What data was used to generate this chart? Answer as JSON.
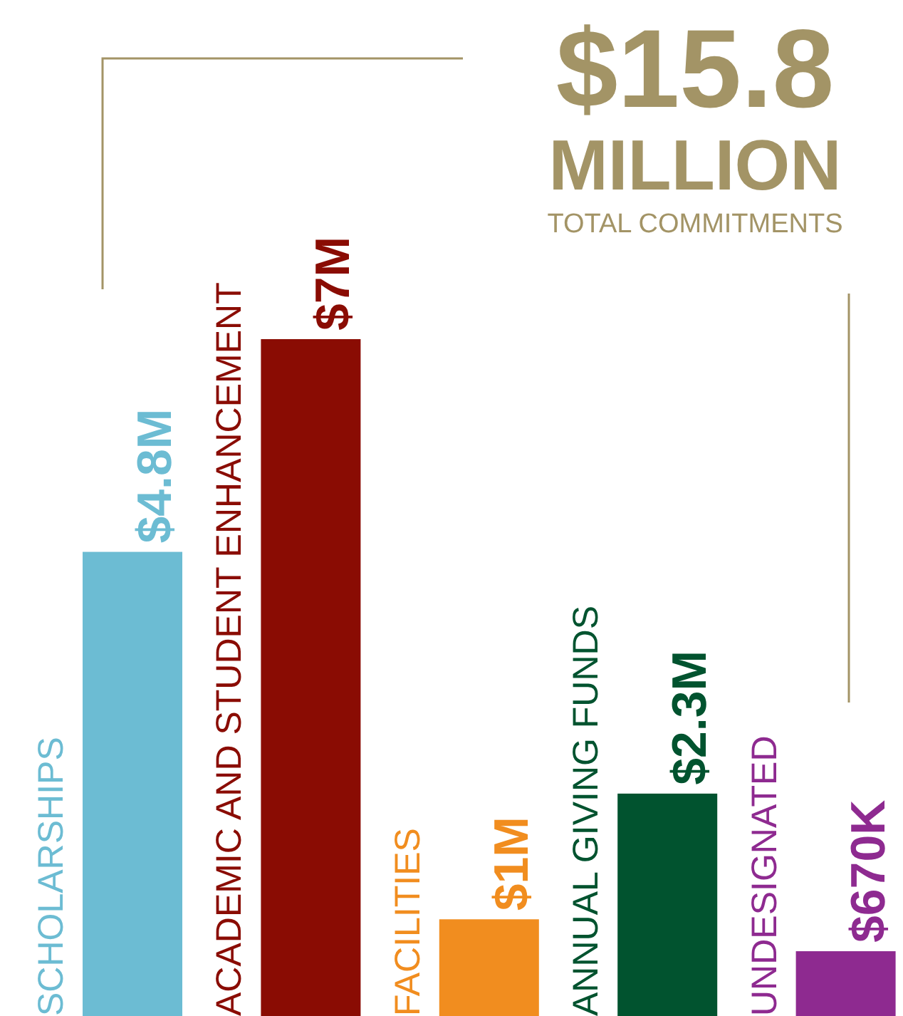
{
  "chart_data": {
    "type": "bar",
    "title": "$15.8 MILLION",
    "subtitle": "TOTAL COMMITMENTS",
    "categories": [
      "SCHOLARSHIPS",
      "ACADEMIC AND STUDENT ENHANCEMENT",
      "FACILITIES",
      "ANNUAL GIVING FUNDS",
      "UNDESIGNATED"
    ],
    "values": [
      4800000,
      7000000,
      1000000,
      2300000,
      670000
    ],
    "value_labels": [
      "$4.8M",
      "$7M",
      "$1M",
      "$2.3M",
      "$670K"
    ],
    "colors": [
      "#6cbcd3",
      "#8a0c03",
      "#f18d1f",
      "#01532f",
      "#8e2a90"
    ]
  }
}
